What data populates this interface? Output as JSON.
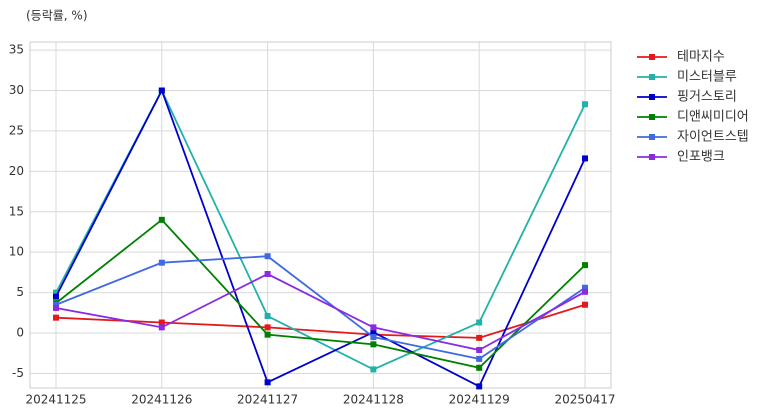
{
  "chart_data": {
    "type": "line",
    "title": "(등락률, %)",
    "categories": [
      "20241125",
      "20241126",
      "20241127",
      "20241128",
      "20241129",
      "20250417"
    ],
    "series": [
      {
        "name": "테마지수",
        "color": "#e31a1c",
        "values": [
          1.9,
          1.3,
          0.7,
          -0.2,
          -0.6,
          3.5
        ]
      },
      {
        "name": "미스터블루",
        "color": "#20b2aa",
        "values": [
          5.0,
          30.0,
          2.1,
          -4.5,
          1.3,
          28.3
        ]
      },
      {
        "name": "핑거스토리",
        "color": "#0000cd",
        "values": [
          4.5,
          30.0,
          -6.1,
          0.1,
          -6.6,
          21.6
        ]
      },
      {
        "name": "디앤씨미디어",
        "color": "#008000",
        "values": [
          3.7,
          14.0,
          -0.2,
          -1.4,
          -4.3,
          8.4
        ]
      },
      {
        "name": "자이언트스텝",
        "color": "#4169e1",
        "values": [
          3.5,
          8.7,
          9.5,
          -0.5,
          -3.2,
          5.6
        ]
      },
      {
        "name": "인포뱅크",
        "color": "#8a2be2",
        "values": [
          3.1,
          0.7,
          7.3,
          0.7,
          -2.1,
          5.1
        ]
      }
    ],
    "ylim": [
      -6.8,
      36
    ],
    "yticks": [
      -5,
      0,
      5,
      10,
      15,
      20,
      25,
      30,
      35
    ],
    "grid": true,
    "legend": "outside-right"
  }
}
